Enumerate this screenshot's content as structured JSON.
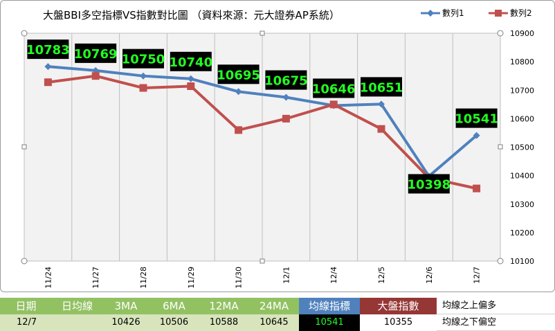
{
  "chart_data": {
    "type": "line",
    "title": "大盤BBI多空指標VS指數對比圖 （資料來源：元大證券AP系統）",
    "categories": [
      "11/24",
      "11/27",
      "11/28",
      "11/29",
      "11/30",
      "12/1",
      "12/4",
      "12/5",
      "12/6",
      "12/7"
    ],
    "ylim": [
      10100,
      10900
    ],
    "yticks": [
      10100,
      10200,
      10300,
      10400,
      10500,
      10600,
      10700,
      10800,
      10900
    ],
    "grid": "vertical",
    "legend": "top-right",
    "series": [
      {
        "name": "數列1",
        "color": "#4f81bd",
        "marker": "diamond",
        "values": [
          10783,
          10769,
          10750,
          10740,
          10695,
          10675,
          10646,
          10651,
          10398,
          10541
        ],
        "labels": [
          "10783",
          "10769",
          "10750",
          "10740",
          "10695",
          "10675",
          "10646",
          "10651",
          "10398",
          "10541"
        ]
      },
      {
        "name": "數列2",
        "color": "#c0504d",
        "marker": "square",
        "values": [
          10728,
          10750,
          10708,
          10714,
          10560,
          10600,
          10650,
          10564,
          10392,
          10355
        ]
      }
    ]
  },
  "sheet": {
    "headers": [
      "日期",
      "日均線",
      "3MA",
      "6MA",
      "12MA",
      "24MA",
      "均線指標",
      "大盤指數"
    ],
    "row": [
      "12/7",
      "",
      "10426",
      "10506",
      "10588",
      "10645",
      "10541",
      "10355"
    ],
    "notes": [
      "均線之上偏多",
      "均線之下偏空"
    ]
  },
  "colors": {
    "label_bg": "#000000",
    "label_text": "#22ff22"
  }
}
